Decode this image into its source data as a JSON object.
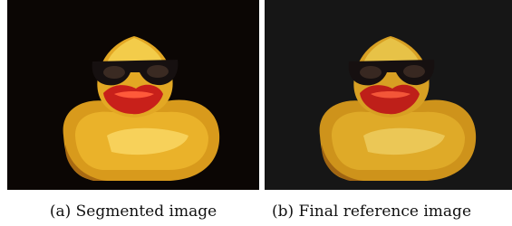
{
  "figure": {
    "subfigures": [
      {
        "caption": "(a) Segmented image"
      },
      {
        "caption": "(b) Final reference image"
      }
    ]
  }
}
